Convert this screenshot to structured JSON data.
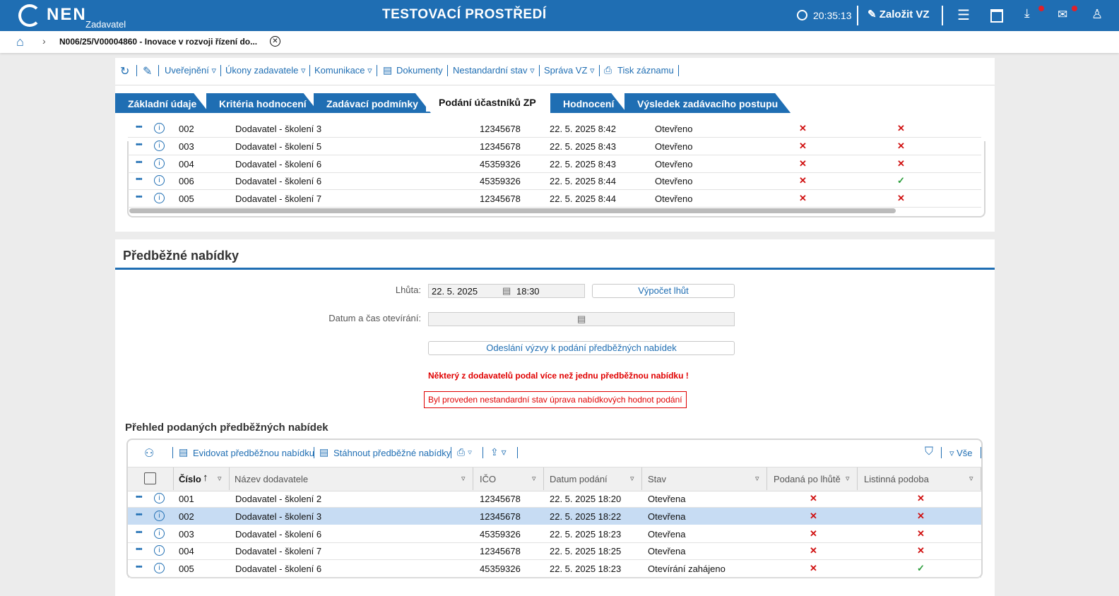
{
  "header": {
    "logo": "NEN",
    "logo_sub": "Zadavatel",
    "title": "TESTOVACÍ PROSTŘEDÍ",
    "time": "20:35:13",
    "create_button": "Založit VZ"
  },
  "breadcrumb": "N006/25/V00004860 - Inovace v rozvoji řízení do...",
  "toolbar": [
    "Uveřejnění",
    "Úkony zadavatele",
    "Komunikace",
    "Dokumenty",
    "Nestandardní stav",
    "Správa VZ",
    "Tisk záznamu"
  ],
  "tabs": {
    "items": [
      "Základní údaje",
      "Kritéria hodnocení",
      "Zadávací podmínky",
      "Podání účastníků ZP",
      "Hodnocení",
      "Výsledek zadávacího postupu"
    ],
    "active": 3
  },
  "top_table": {
    "rows": [
      [
        "002",
        "Dodavatel - školení 3",
        "12345678",
        "22. 5. 2025 8:42",
        "Otevřeno",
        "✕",
        "✕"
      ],
      [
        "003",
        "Dodavatel - školení 5",
        "12345678",
        "22. 5. 2025 8:43",
        "Otevřeno",
        "✕",
        "✕"
      ],
      [
        "004",
        "Dodavatel - školení 6",
        "45359326",
        "22. 5. 2025 8:43",
        "Otevřeno",
        "✕",
        "✕"
      ],
      [
        "006",
        "Dodavatel - školení 6",
        "45359326",
        "22. 5. 2025 8:44",
        "Otevřeno",
        "✕",
        "✓"
      ],
      [
        "005",
        "Dodavatel - školení 7",
        "12345678",
        "22. 5. 2025 8:44",
        "Otevřeno",
        "✕",
        "✕"
      ]
    ]
  },
  "section": {
    "title": "Předběžné nabídky",
    "deadline_label": "Lhůta:",
    "deadline_date": "22. 5. 2025",
    "deadline_time": "18:30",
    "calc_button": "Výpočet lhůt",
    "opening_label": "Datum a čas otevírání:",
    "send_button": "Odeslání výzvy k podání předběžných nabídek",
    "warning": "Některý z dodavatelů podal více než jednu předběžnou nabídku !",
    "notice": "Byl proveden nestandardní stav úprava nabídkových hodnot podání"
  },
  "grid": {
    "title": "Přehled podaných předběžných nabídek",
    "toolbar": [
      "Evidovat předběžnou nabídku",
      "Stáhnout předběžné nabídky"
    ],
    "filter_all": "Vše",
    "columns": [
      "Číslo",
      "Název dodavatele",
      "IČO",
      "Datum podání",
      "Stav",
      "Podaná po lhůtě",
      "Listinná podoba"
    ],
    "selected_row": 1,
    "rows": [
      [
        "001",
        "Dodavatel - školení 2",
        "12345678",
        "22. 5. 2025 18:20",
        "Otevřena",
        "✕",
        "✕"
      ],
      [
        "002",
        "Dodavatel - školení 3",
        "12345678",
        "22. 5. 2025 18:22",
        "Otevřena",
        "✕",
        "✕"
      ],
      [
        "003",
        "Dodavatel - školení 6",
        "45359326",
        "22. 5. 2025 18:23",
        "Otevřena",
        "✕",
        "✕"
      ],
      [
        "004",
        "Dodavatel - školení 7",
        "12345678",
        "22. 5. 2025 18:25",
        "Otevřena",
        "✕",
        "✕"
      ],
      [
        "005",
        "Dodavatel - školení 6",
        "45359326",
        "22. 5. 2025 18:23",
        "Otevírání zahájeno",
        "✕",
        "✓"
      ]
    ]
  }
}
